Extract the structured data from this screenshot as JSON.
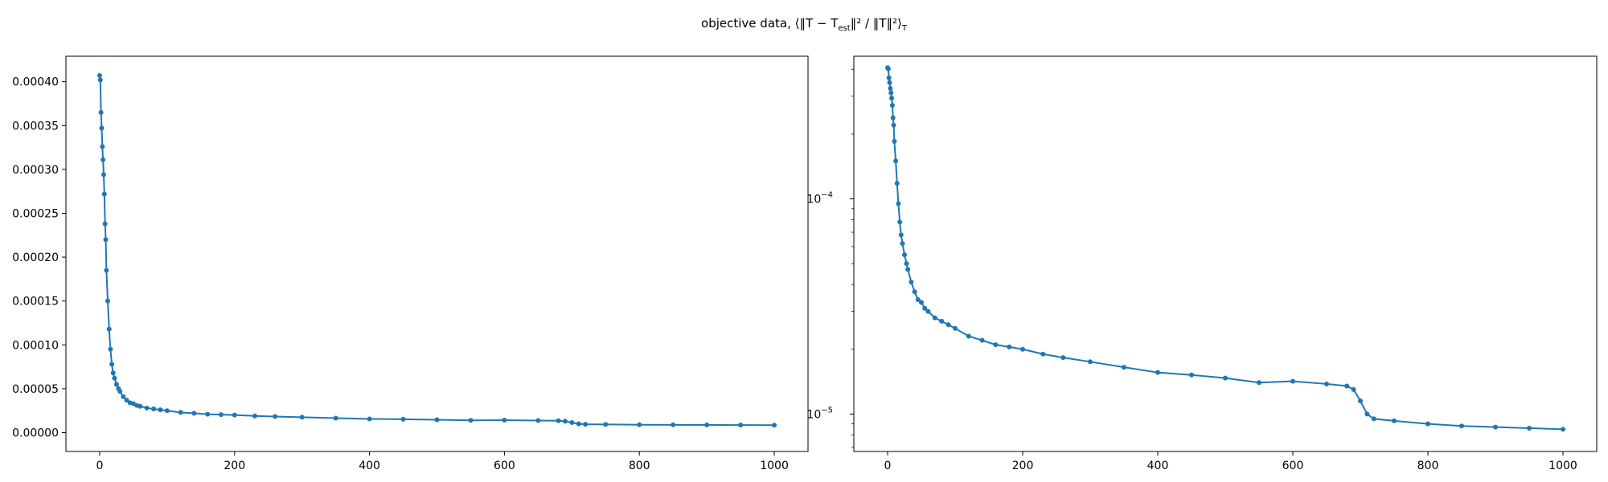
{
  "figure": {
    "title": "objective data, ⟨‖T − T",
    "title_sub": "est",
    "title_tail": "‖² / ‖T‖²⟩",
    "title_sub2": "T"
  },
  "style": {
    "line_color": "#1f77b4",
    "axes_color": "#000000",
    "background": "#ffffff"
  },
  "chart_data": [
    {
      "type": "line",
      "title": "",
      "xlabel": "",
      "ylabel": "",
      "xlim": [
        -50,
        1050
      ],
      "ylim": [
        -2.15e-05,
        0.000429
      ],
      "yscale": "linear",
      "grid": false,
      "marker": "circle",
      "xticks": [
        0,
        200,
        400,
        600,
        800,
        1000
      ],
      "xtick_labels": [
        "0",
        "200",
        "400",
        "600",
        "800",
        "1000"
      ],
      "yticks": [
        0,
        5e-05,
        0.0001,
        0.00015,
        0.0002,
        0.00025,
        0.0003,
        0.00035,
        0.0004
      ],
      "ytick_labels": [
        "0.00000",
        "0.00005",
        "0.00010",
        "0.00015",
        "0.00020",
        "0.00025",
        "0.00030",
        "0.00035",
        "0.00040"
      ],
      "series": [
        {
          "x": [
            0,
            1,
            2,
            3,
            4,
            5,
            6,
            7,
            8,
            9,
            10,
            12,
            14,
            16,
            18,
            20,
            22,
            25,
            28,
            30,
            35,
            40,
            45,
            50,
            55,
            60,
            70,
            80,
            90,
            100,
            120,
            140,
            160,
            180,
            200,
            230,
            260,
            300,
            350,
            400,
            450,
            500,
            550,
            600,
            650,
            680,
            690,
            700,
            710,
            720,
            750,
            800,
            850,
            900,
            950,
            1000
          ],
          "values": [
            0.000407,
            0.000402,
            0.000365,
            0.000347,
            0.000326,
            0.000311,
            0.000294,
            0.000272,
            0.000238,
            0.00022,
            0.000185,
            0.00015,
            0.000118,
            9.5e-05,
            7.8e-05,
            6.8e-05,
            6.2e-05,
            5.5e-05,
            5e-05,
            4.7e-05,
            4.1e-05,
            3.7e-05,
            3.4e-05,
            3.3e-05,
            3.1e-05,
            3e-05,
            2.8e-05,
            2.7e-05,
            2.6e-05,
            2.5e-05,
            2.3e-05,
            2.2e-05,
            2.1e-05,
            2.05e-05,
            2e-05,
            1.9e-05,
            1.83e-05,
            1.75e-05,
            1.65e-05,
            1.56e-05,
            1.52e-05,
            1.47e-05,
            1.4e-05,
            1.42e-05,
            1.38e-05,
            1.35e-05,
            1.3e-05,
            1.15e-05,
            1e-05,
            9.5e-06,
            9.3e-06,
            9e-06,
            8.8e-06,
            8.7e-06,
            8.6e-06,
            8.5e-06
          ]
        }
      ]
    },
    {
      "type": "line",
      "title": "",
      "xlabel": "",
      "ylabel": "",
      "xlim": [
        -50,
        1050
      ],
      "ylim": [
        6.7e-06,
        0.00046
      ],
      "yscale": "log",
      "grid": false,
      "marker": "circle",
      "xticks": [
        0,
        200,
        400,
        600,
        800,
        1000
      ],
      "xtick_labels": [
        "0",
        "200",
        "400",
        "600",
        "800",
        "1000"
      ],
      "yticks": [
        1e-05,
        0.0001
      ],
      "ytick_labels": [
        {
          "base": "10",
          "exp": "−5"
        },
        {
          "base": "10",
          "exp": "−4"
        }
      ],
      "series": [
        {
          "x": [
            0,
            1,
            2,
            3,
            4,
            5,
            6,
            7,
            8,
            9,
            10,
            12,
            14,
            16,
            18,
            20,
            22,
            25,
            28,
            30,
            35,
            40,
            45,
            50,
            55,
            60,
            70,
            80,
            90,
            100,
            120,
            140,
            160,
            180,
            200,
            230,
            260,
            300,
            350,
            400,
            450,
            500,
            550,
            600,
            650,
            680,
            690,
            700,
            710,
            720,
            750,
            800,
            850,
            900,
            950,
            1000
          ],
          "values": [
            0.000407,
            0.000402,
            0.000365,
            0.000347,
            0.000326,
            0.000311,
            0.000294,
            0.000272,
            0.000238,
            0.00022,
            0.000185,
            0.00015,
            0.000118,
            9.5e-05,
            7.8e-05,
            6.8e-05,
            6.2e-05,
            5.5e-05,
            5e-05,
            4.7e-05,
            4.1e-05,
            3.7e-05,
            3.4e-05,
            3.3e-05,
            3.1e-05,
            3e-05,
            2.8e-05,
            2.7e-05,
            2.6e-05,
            2.5e-05,
            2.3e-05,
            2.2e-05,
            2.1e-05,
            2.05e-05,
            2e-05,
            1.9e-05,
            1.83e-05,
            1.75e-05,
            1.65e-05,
            1.56e-05,
            1.52e-05,
            1.47e-05,
            1.4e-05,
            1.42e-05,
            1.38e-05,
            1.35e-05,
            1.3e-05,
            1.15e-05,
            1e-05,
            9.5e-06,
            9.3e-06,
            9e-06,
            8.8e-06,
            8.7e-06,
            8.6e-06,
            8.5e-06
          ]
        }
      ]
    }
  ]
}
